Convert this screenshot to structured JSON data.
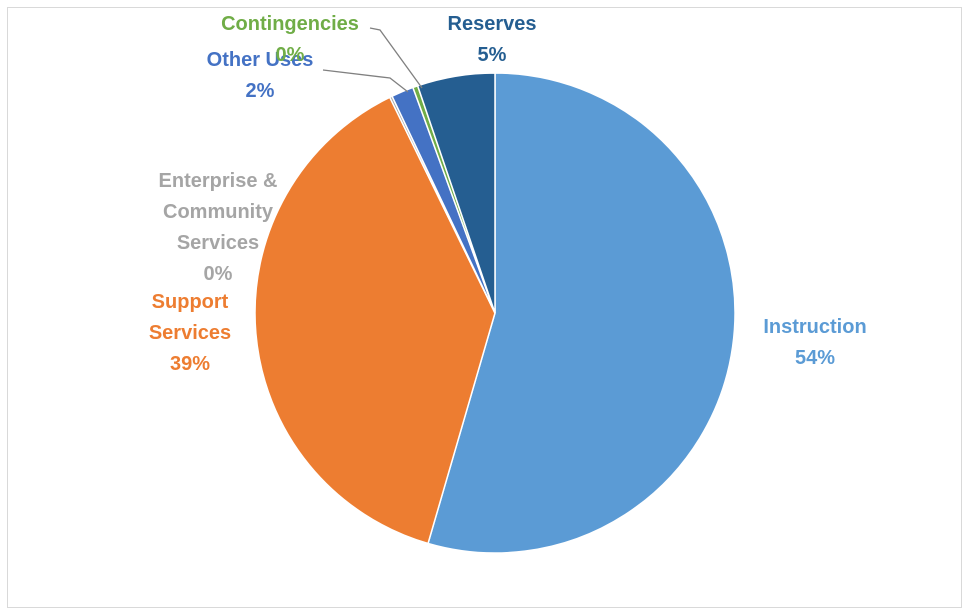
{
  "chart_data": {
    "type": "pie",
    "title": "",
    "series": [
      {
        "values": [
          54,
          39,
          0,
          2,
          0,
          5
        ],
        "categories": [
          "Instruction",
          "Support Services",
          "Enterprise & Community Services",
          "Other Uses",
          "Contingencies",
          "Reserves"
        ]
      }
    ],
    "slices": [
      {
        "label": "Instruction",
        "label_lines": [
          "Instruction"
        ],
        "value": 54,
        "value_text": "54%",
        "color": "#5b9bd5"
      },
      {
        "label": "Support Services",
        "label_lines": [
          "Support",
          "Services"
        ],
        "value": 39,
        "value_text": "39%",
        "color": "#ed7d31"
      },
      {
        "label": "Enterprise & Community Services",
        "label_lines": [
          "Enterprise &",
          "Community",
          "Services"
        ],
        "value": 0,
        "value_text": "0%",
        "color": "#a5a5a5"
      },
      {
        "label": "Other Uses",
        "label_lines": [
          "Other Uses"
        ],
        "value": 2,
        "value_text": "2%",
        "color": "#4472c4"
      },
      {
        "label": "Contingencies",
        "label_lines": [
          "Contingencies"
        ],
        "value": 0,
        "value_text": "0%",
        "color": "#70ad47"
      },
      {
        "label": "Reserves",
        "label_lines": [
          "Reserves"
        ],
        "value": 5,
        "value_text": "5%",
        "color": "#255e91"
      }
    ],
    "start_angle": "12 o'clock",
    "direction": "clockwise",
    "legend": "none",
    "data_labels": "category name and percentage"
  }
}
